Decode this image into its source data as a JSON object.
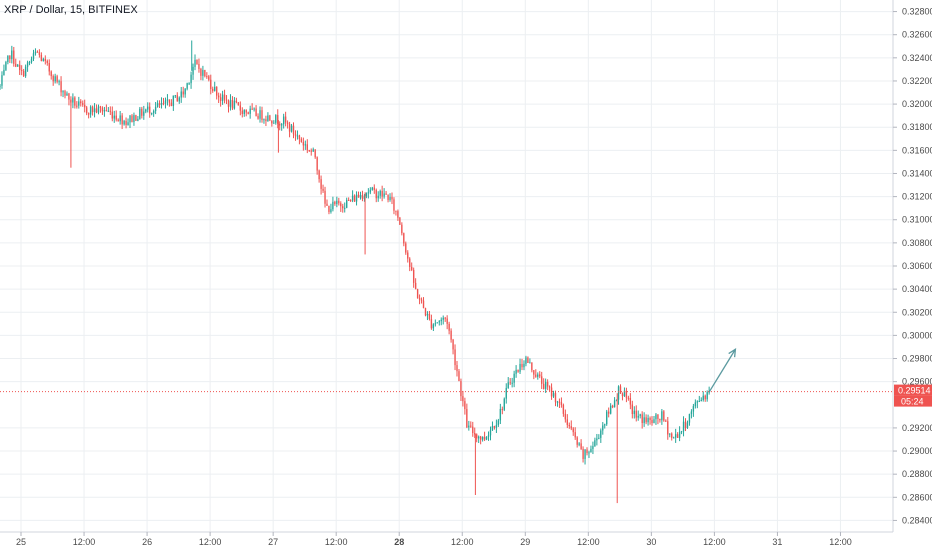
{
  "header": {
    "title": "XRP / Dollar, 15, BITFINEX"
  },
  "price_axis": {
    "labels": [
      "0.32800",
      "0.32600",
      "0.32400",
      "0.32200",
      "0.32000",
      "0.31800",
      "0.31600",
      "0.31400",
      "0.31200",
      "0.31000",
      "0.30800",
      "0.30600",
      "0.30400",
      "0.30200",
      "0.30000",
      "0.29800",
      "0.29600",
      "0.29200",
      "0.29000",
      "0.28800",
      "0.28600",
      "0.28400"
    ]
  },
  "time_axis": {
    "labels": [
      "25",
      "12:00",
      "26",
      "12:00",
      "27",
      "12:00",
      "28",
      "12:00",
      "29",
      "12:00",
      "30",
      "12:00",
      "31",
      "12:00"
    ],
    "bold": [
      "28"
    ]
  },
  "current_price": {
    "price": "0.29514",
    "countdown": "05:24",
    "value": 0.29514
  },
  "colors": {
    "up": "#26a69a",
    "down": "#ef5350",
    "grid": "#eceff2",
    "price_line": "#ef5350",
    "arrow": "#5b9aa0"
  },
  "chart_data": {
    "type": "candlestick",
    "title": "XRP / Dollar, 15, BITFINEX",
    "x_range": [
      "2018-05-24T20:00",
      "2018-05-31T22:00"
    ],
    "ylim": [
      0.283,
      0.329
    ],
    "grid": true,
    "price_path": [
      {
        "t": "2018-05-24T20:00",
        "p": 0.3215
      },
      {
        "t": "2018-05-24T22:00",
        "p": 0.3245
      },
      {
        "t": "2018-05-25T00:00",
        "p": 0.3225
      },
      {
        "t": "2018-05-25T03:00",
        "p": 0.3245
      },
      {
        "t": "2018-05-25T06:00",
        "p": 0.3225
      },
      {
        "t": "2018-05-25T09:00",
        "p": 0.3205
      },
      {
        "t": "2018-05-25T12:00",
        "p": 0.3195
      },
      {
        "t": "2018-05-25T16:00",
        "p": 0.3195
      },
      {
        "t": "2018-05-25T20:00",
        "p": 0.3185
      },
      {
        "t": "2018-05-26T00:00",
        "p": 0.3195
      },
      {
        "t": "2018-05-26T04:00",
        "p": 0.32
      },
      {
        "t": "2018-05-26T07:00",
        "p": 0.321
      },
      {
        "t": "2018-05-26T09:00",
        "p": 0.3235
      },
      {
        "t": "2018-05-26T11:00",
        "p": 0.3225
      },
      {
        "t": "2018-05-26T14:00",
        "p": 0.3205
      },
      {
        "t": "2018-05-26T18:00",
        "p": 0.3195
      },
      {
        "t": "2018-05-26T22:00",
        "p": 0.319
      },
      {
        "t": "2018-05-27T02:00",
        "p": 0.3185
      },
      {
        "t": "2018-05-27T05:00",
        "p": 0.317
      },
      {
        "t": "2018-05-27T08:00",
        "p": 0.3155
      },
      {
        "t": "2018-05-27T10:00",
        "p": 0.311
      },
      {
        "t": "2018-05-27T14:00",
        "p": 0.3115
      },
      {
        "t": "2018-05-27T18:00",
        "p": 0.3125
      },
      {
        "t": "2018-05-27T22:00",
        "p": 0.312
      },
      {
        "t": "2018-05-28T00:00",
        "p": 0.31
      },
      {
        "t": "2018-05-28T03:00",
        "p": 0.304
      },
      {
        "t": "2018-05-28T06:00",
        "p": 0.301
      },
      {
        "t": "2018-05-28T09:00",
        "p": 0.3015
      },
      {
        "t": "2018-05-28T11:00",
        "p": 0.297
      },
      {
        "t": "2018-05-28T13:00",
        "p": 0.292
      },
      {
        "t": "2018-05-28T16:00",
        "p": 0.291
      },
      {
        "t": "2018-05-28T19:00",
        "p": 0.293
      },
      {
        "t": "2018-05-28T21:00",
        "p": 0.296
      },
      {
        "t": "2018-05-29T00:00",
        "p": 0.298
      },
      {
        "t": "2018-05-29T03:00",
        "p": 0.296
      },
      {
        "t": "2018-05-29T06:00",
        "p": 0.2945
      },
      {
        "t": "2018-05-29T09:00",
        "p": 0.2915
      },
      {
        "t": "2018-05-29T11:00",
        "p": 0.2895
      },
      {
        "t": "2018-05-29T13:00",
        "p": 0.2905
      },
      {
        "t": "2018-05-29T16:00",
        "p": 0.2935
      },
      {
        "t": "2018-05-29T18:00",
        "p": 0.2955
      },
      {
        "t": "2018-05-29T21:00",
        "p": 0.293
      },
      {
        "t": "2018-05-30T00:00",
        "p": 0.2925
      },
      {
        "t": "2018-05-30T02:00",
        "p": 0.293
      },
      {
        "t": "2018-05-30T04:00",
        "p": 0.291
      },
      {
        "t": "2018-05-30T06:00",
        "p": 0.292
      },
      {
        "t": "2018-05-30T09:00",
        "p": 0.2945
      },
      {
        "t": "2018-05-30T11:00",
        "p": 0.2951
      }
    ],
    "wicks": [
      {
        "t": "2018-05-25T09:30",
        "p": 0.3145
      },
      {
        "t": "2018-05-27T01:00",
        "p": 0.3158
      },
      {
        "t": "2018-05-27T17:30",
        "p": 0.307
      },
      {
        "t": "2018-05-28T14:30",
        "p": 0.2862
      },
      {
        "t": "2018-05-29T17:30",
        "p": 0.2855
      },
      {
        "t": "2018-05-26T08:30",
        "p": 0.3255
      }
    ],
    "projection": [
      {
        "t": "2018-05-30T11:00",
        "p": 0.2951
      },
      {
        "t": "2018-05-30T16:00",
        "p": 0.2988
      }
    ]
  }
}
